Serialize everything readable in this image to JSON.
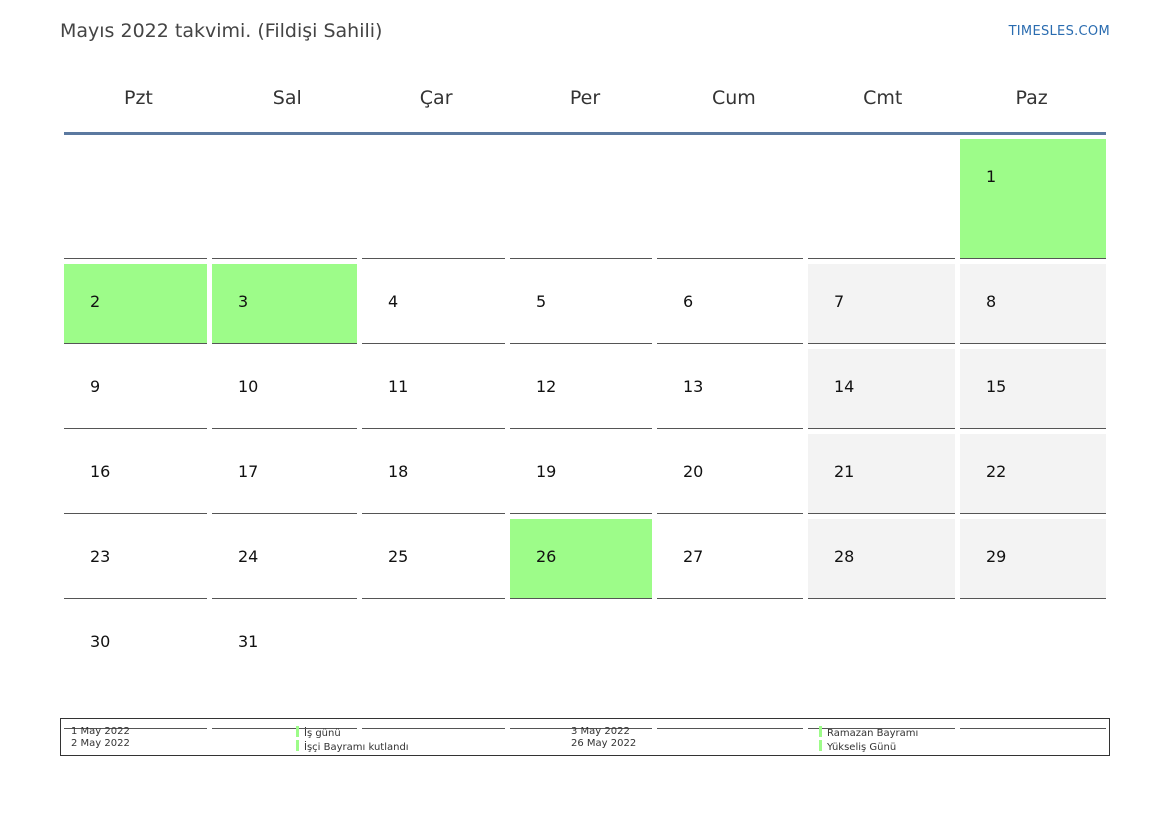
{
  "title": "Mayıs 2022 takvimi. (Fildişi Sahili)",
  "site": "TIMESLES.COM",
  "weekdays": [
    "Pzt",
    "Sal",
    "Çar",
    "Per",
    "Cum",
    "Cmt",
    "Paz"
  ],
  "weeks": [
    [
      "",
      "",
      "",
      "",
      "",
      "",
      "1"
    ],
    [
      "2",
      "3",
      "4",
      "5",
      "6",
      "7",
      "8"
    ],
    [
      "9",
      "10",
      "11",
      "12",
      "13",
      "14",
      "15"
    ],
    [
      "16",
      "17",
      "18",
      "19",
      "20",
      "21",
      "22"
    ],
    [
      "23",
      "24",
      "25",
      "26",
      "27",
      "28",
      "29"
    ],
    [
      "30",
      "31",
      "",
      "",
      "",
      "",
      ""
    ]
  ],
  "holiday_days": [
    "1",
    "2",
    "3",
    "26"
  ],
  "colors": {
    "holiday": "#9dfc89",
    "weekend": "#f3f3f3",
    "header_rule": "#5b79a0",
    "site_link": "#2a6cb0"
  },
  "legend": [
    {
      "date": "1 May 2022",
      "name": "İş günü"
    },
    {
      "date": "2 May 2022",
      "name": "İşçi Bayramı kutlandı"
    },
    {
      "date": "3 May 2022",
      "name": "Ramazan Bayramı"
    },
    {
      "date": "26 May 2022",
      "name": "Yükseliş Günü"
    }
  ]
}
